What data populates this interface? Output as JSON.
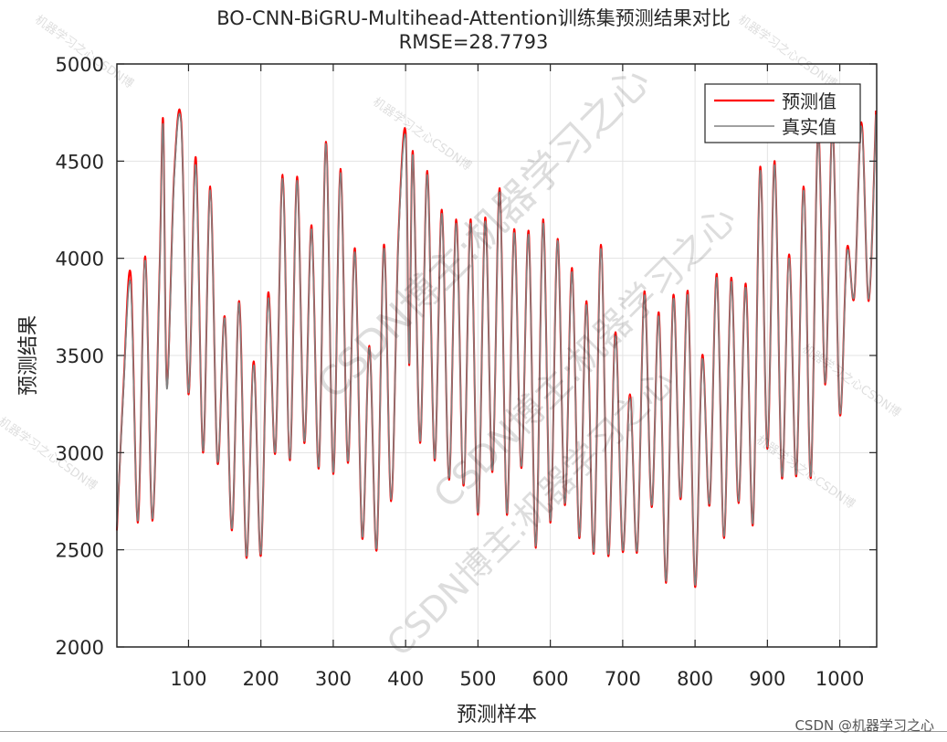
{
  "chart_data": {
    "type": "line",
    "title": "BO-CNN-BiGRU-Multihead-Attention训练集预测结果对比",
    "subtitle": "RMSE=28.7793",
    "xlabel": "预测样本",
    "ylabel": "预测结果",
    "xlim": [
      1,
      1051
    ],
    "ylim": [
      2000,
      5000
    ],
    "xticks": [
      100,
      200,
      300,
      400,
      500,
      600,
      700,
      800,
      900,
      1000
    ],
    "yticks": [
      2000,
      2500,
      3000,
      3500,
      4000,
      4500,
      5000
    ],
    "grid": true,
    "legend_position": "top-right",
    "series": [
      {
        "name": "预测值",
        "color": "#ff0000"
      },
      {
        "name": "真实值",
        "color": "#808080"
      }
    ],
    "x": [
      1,
      10,
      20,
      30,
      40,
      50,
      60,
      65,
      70,
      80,
      90,
      100,
      110,
      120,
      130,
      140,
      150,
      160,
      170,
      180,
      190,
      200,
      210,
      220,
      230,
      240,
      250,
      260,
      270,
      280,
      290,
      300,
      310,
      320,
      330,
      340,
      350,
      360,
      370,
      380,
      390,
      400,
      405,
      410,
      420,
      430,
      440,
      450,
      460,
      470,
      480,
      490,
      500,
      510,
      520,
      530,
      540,
      550,
      560,
      570,
      580,
      590,
      600,
      610,
      620,
      630,
      640,
      650,
      660,
      670,
      680,
      690,
      700,
      710,
      720,
      730,
      740,
      750,
      760,
      770,
      780,
      790,
      800,
      810,
      820,
      830,
      840,
      850,
      860,
      870,
      880,
      890,
      900,
      910,
      920,
      930,
      940,
      950,
      960,
      970,
      980,
      990,
      1000,
      1010,
      1020,
      1030,
      1040,
      1050
    ],
    "predicted": [
      2600,
      3330,
      3920,
      2640,
      4010,
      2650,
      3950,
      4710,
      3350,
      4420,
      4700,
      3300,
      4520,
      3000,
      4370,
      2950,
      3700,
      2600,
      3780,
      2460,
      3470,
      2470,
      3820,
      3000,
      4430,
      2960,
      4420,
      3050,
      4170,
      2920,
      4600,
      2890,
      4460,
      2950,
      4050,
      2560,
      3550,
      2500,
      4070,
      2750,
      4100,
      4650,
      3450,
      4550,
      3050,
      4450,
      2960,
      4250,
      2860,
      4200,
      2830,
      4200,
      2680,
      4210,
      2900,
      4360,
      2680,
      4150,
      2920,
      4140,
      2510,
      4200,
      2640,
      4100,
      2730,
      3950,
      2560,
      3780,
      2480,
      4070,
      2470,
      3620,
      2490,
      3300,
      2490,
      3830,
      2720,
      3720,
      2330,
      3810,
      2760,
      3830,
      2310,
      3500,
      2730,
      3920,
      2560,
      3900,
      2740,
      3870,
      2630,
      4470,
      3020,
      4500,
      2870,
      4020,
      2880,
      4370,
      2870,
      4660,
      3350,
      4690,
      3200,
      4050,
      3800,
      4700,
      3780,
      4760
    ],
    "actual": [
      2620,
      3310,
      3870,
      2650,
      3990,
      2660,
      3930,
      4680,
      3330,
      4400,
      4680,
      3310,
      4480,
      3010,
      4350,
      2960,
      3690,
      2610,
      3770,
      2470,
      3450,
      2480,
      3790,
      3010,
      4410,
      2970,
      4400,
      3060,
      4150,
      2930,
      4590,
      2900,
      4440,
      2960,
      4030,
      2570,
      3540,
      2510,
      4050,
      2760,
      4080,
      4620,
      3460,
      4530,
      3060,
      4430,
      2970,
      4230,
      2870,
      4180,
      2840,
      4180,
      2690,
      4190,
      2910,
      4340,
      2690,
      4130,
      2930,
      4120,
      2520,
      4180,
      2650,
      4090,
      2740,
      3930,
      2570,
      3760,
      2490,
      4050,
      2480,
      3600,
      2500,
      3280,
      2500,
      3810,
      2730,
      3700,
      2340,
      3790,
      2770,
      3810,
      2320,
      3480,
      2740,
      3900,
      2570,
      3880,
      2750,
      3850,
      2640,
      4450,
      3030,
      4480,
      2880,
      4000,
      2890,
      4350,
      2880,
      4640,
      3360,
      4670,
      3210,
      4030,
      3810,
      4680,
      3790,
      4740
    ]
  },
  "watermark": {
    "diagonal_text": "CSDN博主:机器学习之心",
    "small_text": "机器学习之心CSDN博"
  },
  "footer": {
    "text": "CSDN @机器学习之心"
  }
}
